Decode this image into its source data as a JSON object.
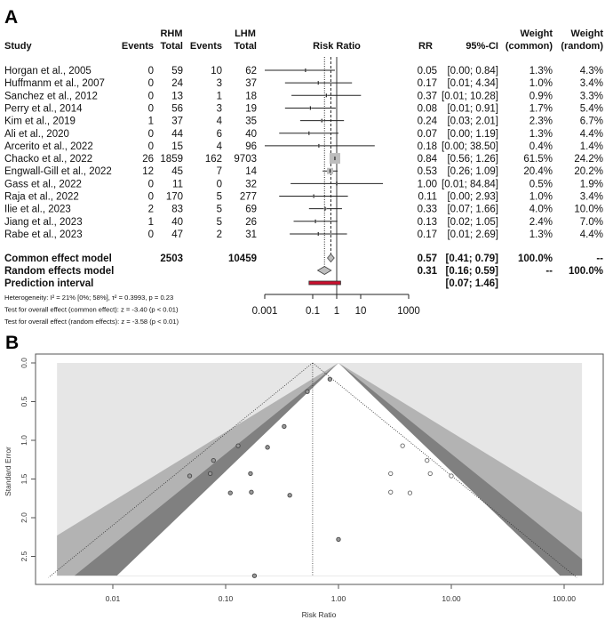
{
  "panel_a": {
    "label": "A",
    "headers": {
      "study": "Study",
      "rhm": "RHM",
      "lhm": "LHM",
      "events": "Events",
      "total": "Total",
      "risk_ratio": "Risk Ratio",
      "rr": "RR",
      "ci": "95%-CI",
      "weight": "Weight",
      "common": "(common)",
      "random": "(random)"
    },
    "studies": [
      {
        "name": "Horgan et al., 2005",
        "rhm_events": "0",
        "rhm_total": "59",
        "lhm_events": "10",
        "lhm_total": "62",
        "rr": "0.05",
        "ci": "[0.00; 0.84]",
        "lower": 0.0009,
        "upper": 0.84,
        "w_common": "1.3%",
        "w_random": "4.3%"
      },
      {
        "name": "Huffmanm et al., 2007",
        "rhm_events": "0",
        "rhm_total": "24",
        "lhm_events": "3",
        "lhm_total": "37",
        "rr": "0.17",
        "ci": "[0.01; 4.34]",
        "lower": 0.007,
        "upper": 4.34,
        "w_common": "1.0%",
        "w_random": "3.4%"
      },
      {
        "name": "Sanchez et al., 2012",
        "rhm_events": "0",
        "rhm_total": "13",
        "lhm_events": "1",
        "lhm_total": "18",
        "rr": "0.37",
        "ci": "[0.01; 10.28]",
        "lower": 0.013,
        "upper": 10.28,
        "w_common": "0.9%",
        "w_random": "3.3%"
      },
      {
        "name": "Perry et al., 2014",
        "rhm_events": "0",
        "rhm_total": "56",
        "lhm_events": "3",
        "lhm_total": "19",
        "rr": "0.08",
        "ci": "[0.01; 0.91]",
        "lower": 0.007,
        "upper": 0.91,
        "w_common": "1.7%",
        "w_random": "5.4%"
      },
      {
        "name": "Kim et al., 2019",
        "rhm_events": "1",
        "rhm_total": "37",
        "lhm_events": "4",
        "lhm_total": "35",
        "rr": "0.24",
        "ci": "[0.03; 2.01]",
        "lower": 0.03,
        "upper": 2.01,
        "w_common": "2.3%",
        "w_random": "6.7%"
      },
      {
        "name": "Ali et al., 2020",
        "rhm_events": "0",
        "rhm_total": "44",
        "lhm_events": "6",
        "lhm_total": "40",
        "rr": "0.07",
        "ci": "[0.00; 1.19]",
        "lower": 0.004,
        "upper": 1.19,
        "w_common": "1.3%",
        "w_random": "4.4%"
      },
      {
        "name": "Arcerito et al., 2022",
        "rhm_events": "0",
        "rhm_total": "15",
        "lhm_events": "4",
        "lhm_total": "96",
        "rr": "0.18",
        "ci": "[0.00; 38.50]",
        "lower": 0.0009,
        "upper": 38.5,
        "w_common": "0.4%",
        "w_random": "1.4%"
      },
      {
        "name": "Chacko et al., 2022",
        "rhm_events": "26",
        "rhm_total": "1859",
        "lhm_events": "162",
        "lhm_total": "9703",
        "rr": "0.84",
        "ci": "[0.56; 1.26]",
        "lower": 0.56,
        "upper": 1.26,
        "w_common": "61.5%",
        "w_random": "24.2%"
      },
      {
        "name": "Engwall-Gill et al., 2022",
        "rhm_events": "12",
        "rhm_total": "45",
        "lhm_events": "7",
        "lhm_total": "14",
        "rr": "0.53",
        "ci": "[0.26; 1.09]",
        "lower": 0.26,
        "upper": 1.09,
        "w_common": "20.4%",
        "w_random": "20.2%"
      },
      {
        "name": "Gass et al., 2022",
        "rhm_events": "0",
        "rhm_total": "11",
        "lhm_events": "0",
        "lhm_total": "32",
        "rr": "1.00",
        "ci": "[0.01; 84.84]",
        "lower": 0.012,
        "upper": 84.84,
        "w_common": "0.5%",
        "w_random": "1.9%"
      },
      {
        "name": "Raja et al., 2022",
        "rhm_events": "0",
        "rhm_total": "170",
        "lhm_events": "5",
        "lhm_total": "277",
        "rr": "0.11",
        "ci": "[0.00; 2.93]",
        "lower": 0.004,
        "upper": 2.93,
        "w_common": "1.0%",
        "w_random": "3.4%"
      },
      {
        "name": "Ilie et al., 2023",
        "rhm_events": "2",
        "rhm_total": "83",
        "lhm_events": "5",
        "lhm_total": "69",
        "rr": "0.33",
        "ci": "[0.07; 1.66]",
        "lower": 0.07,
        "upper": 1.66,
        "w_common": "4.0%",
        "w_random": "10.0%"
      },
      {
        "name": "Jiang et al., 2023",
        "rhm_events": "1",
        "rhm_total": "40",
        "lhm_events": "5",
        "lhm_total": "26",
        "rr": "0.13",
        "ci": "[0.02; 1.05]",
        "lower": 0.016,
        "upper": 1.05,
        "w_common": "2.4%",
        "w_random": "7.0%"
      },
      {
        "name": "Rabe et al., 2023",
        "rhm_events": "0",
        "rhm_total": "47",
        "lhm_events": "2",
        "lhm_total": "31",
        "rr": "0.17",
        "ci": "[0.01; 2.69]",
        "lower": 0.011,
        "upper": 2.69,
        "w_common": "1.3%",
        "w_random": "4.4%"
      }
    ],
    "summary": {
      "common": {
        "name": "Common effect model",
        "rhm_total": "2503",
        "lhm_total": "10459",
        "rr": "0.57",
        "ci": "[0.41; 0.79]",
        "lower": 0.41,
        "upper": 0.79,
        "w_common": "100.0%",
        "w_random": "--"
      },
      "random": {
        "name": "Random effects model",
        "rr": "0.31",
        "ci": "[0.16; 0.59]",
        "lower": 0.16,
        "upper": 0.59,
        "w_common": "--",
        "w_random": "100.0%"
      },
      "prediction": {
        "name": "Prediction interval",
        "ci": "[0.07; 1.46]",
        "lower": 0.07,
        "upper": 1.46
      }
    },
    "notes": [
      "Heterogeneity: I² = 21% [0%; 58%], τ² = 0.3993, p = 0.23",
      "Test for overall effect (common effect): z = -3.40 (p < 0.01)",
      "Test for overall effect (random effects): z = -3.58 (p < 0.01)"
    ],
    "axis_ticks": [
      "0.001",
      "0.1",
      "1",
      "10",
      "1000"
    ],
    "colors": {
      "box": "#bdbdbd",
      "prediction": "#c8102e",
      "line": "#222222"
    }
  },
  "panel_b": {
    "label": "B"
  },
  "chart_data": [
    {
      "type": "forest",
      "title": "Risk Ratio",
      "xscale": "log",
      "xlim": [
        0.001,
        1000
      ],
      "reference_line": 1,
      "common_effect": 0.57,
      "random_effect": 0.31
    },
    {
      "type": "scatter",
      "subtype": "contour-enhanced funnel plot",
      "xlabel": "Risk Ratio",
      "ylabel": "Standard Error",
      "xscale": "log",
      "x_ticks": [
        "0.01",
        "0.10",
        "1.00",
        "10.00",
        "100.00"
      ],
      "y_ticks": [
        "0.0",
        "0.5",
        "1.0",
        "1.5",
        "2.0",
        "2.5"
      ],
      "xlim": [
        0.0032,
        144
      ],
      "ylim": [
        2.75,
        0
      ],
      "contour_center": 1,
      "contour_z": [
        1.645,
        1.96,
        2.576
      ],
      "contour_colors": [
        "#ffffff",
        "#808080",
        "#b3b3b3",
        "#e6e6e6"
      ],
      "pooled_estimate": 0.59,
      "observed": [
        {
          "rr": 0.048,
          "se": 1.46
        },
        {
          "rr": 0.073,
          "se": 1.43
        },
        {
          "rr": 0.078,
          "se": 1.26
        },
        {
          "rr": 0.129,
          "se": 1.07
        },
        {
          "rr": 0.11,
          "se": 1.68
        },
        {
          "rr": 0.166,
          "se": 1.43
        },
        {
          "rr": 0.169,
          "se": 1.67
        },
        {
          "rr": 0.235,
          "se": 1.09
        },
        {
          "rr": 0.33,
          "se": 0.82
        },
        {
          "rr": 0.37,
          "se": 1.71
        },
        {
          "rr": 0.18,
          "se": 2.75
        },
        {
          "rr": 0.53,
          "se": 0.37
        },
        {
          "rr": 0.84,
          "se": 0.21
        },
        {
          "rr": 1.0,
          "se": 2.28
        }
      ],
      "imputed": [
        {
          "rr": 3.7,
          "se": 1.07
        },
        {
          "rr": 6.1,
          "se": 1.26
        },
        {
          "rr": 2.9,
          "se": 1.43
        },
        {
          "rr": 6.5,
          "se": 1.43
        },
        {
          "rr": 10.0,
          "se": 1.46
        },
        {
          "rr": 2.9,
          "se": 1.67
        },
        {
          "rr": 4.3,
          "se": 1.68
        }
      ]
    }
  ]
}
